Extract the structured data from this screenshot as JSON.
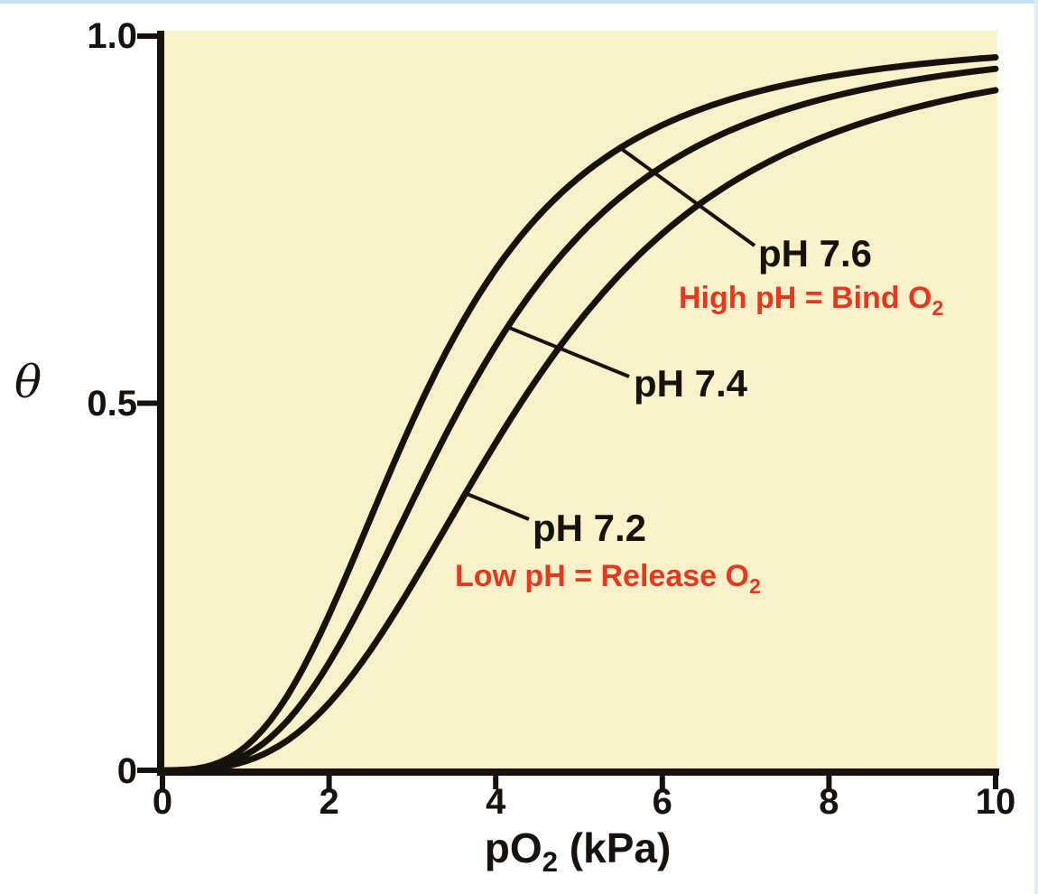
{
  "figure": {
    "ylabel": "θ",
    "xlabel": {
      "pre": "pO",
      "sub": "2",
      "post": " (kPa)"
    },
    "y_ticks": [
      "1.0",
      "0.5",
      "0"
    ],
    "x_ticks": [
      "0",
      "2",
      "4",
      "6",
      "8",
      "10"
    ],
    "colors": {
      "plot_background": "#f8f1c9",
      "curve": "#17120d",
      "axis": "#17120d",
      "annotation_red": "#e8371f"
    }
  },
  "annotations": {
    "ph76": "pH 7.6",
    "ph74": "pH 7.4",
    "ph72": "pH 7.2",
    "high_ph": {
      "pre": "High pH = Bind O",
      "sub": "2"
    },
    "low_ph": {
      "pre": "Low pH = Release O",
      "sub": "2"
    }
  },
  "chart_data": {
    "type": "line",
    "title": "",
    "xlabel": "pO2 (kPa)",
    "ylabel": "θ",
    "xlim": [
      0,
      10
    ],
    "ylim": [
      0,
      1
    ],
    "grid": false,
    "x": [
      0,
      1,
      2,
      3,
      4,
      5,
      6,
      7,
      8,
      9,
      10
    ],
    "series": [
      {
        "name": "pH 7.6",
        "hill_p50": 3.1,
        "hill_n": 3.0,
        "values": [
          0,
          0.032,
          0.212,
          0.475,
          0.682,
          0.808,
          0.879,
          0.92,
          0.945,
          0.961,
          0.971
        ]
      },
      {
        "name": "pH 7.4",
        "hill_p50": 3.6,
        "hill_n": 3.0,
        "values": [
          0,
          0.021,
          0.146,
          0.367,
          0.578,
          0.728,
          0.822,
          0.88,
          0.916,
          0.94,
          0.955
        ]
      },
      {
        "name": "pH 7.2",
        "hill_p50": 4.3,
        "hill_n": 3.0,
        "values": [
          0,
          0.012,
          0.091,
          0.254,
          0.446,
          0.611,
          0.731,
          0.812,
          0.866,
          0.902,
          0.926
        ]
      }
    ],
    "annotations": [
      {
        "text": "pH 7.6",
        "color": "#17120d"
      },
      {
        "text": "High pH = Bind O2",
        "color": "#e8371f"
      },
      {
        "text": "pH 7.4",
        "color": "#17120d"
      },
      {
        "text": "pH 7.2",
        "color": "#17120d"
      },
      {
        "text": "Low pH = Release O2",
        "color": "#e8371f"
      }
    ]
  }
}
